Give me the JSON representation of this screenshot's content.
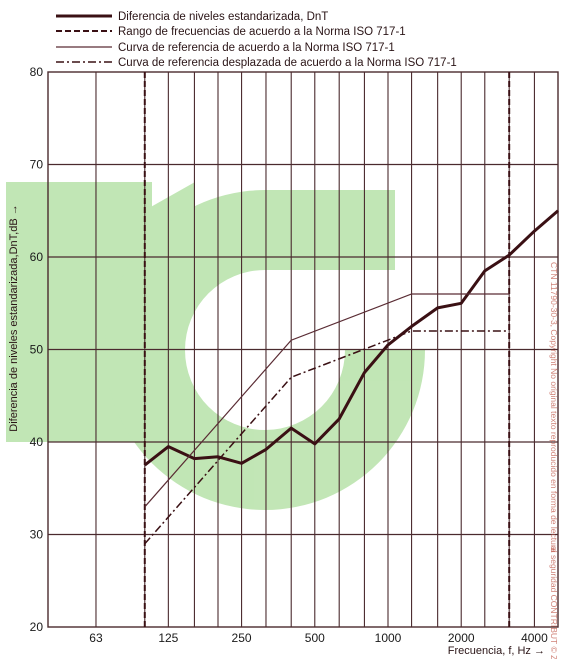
{
  "chart_data": {
    "type": "line",
    "title": "",
    "xlabel": "Frecuencia, f, Hz →",
    "ylabel": "Diferencia de niveles estandarizada,DnT,dB →",
    "x_scale": "log",
    "xlim": [
      40,
      5000
    ],
    "ylim": [
      20,
      80
    ],
    "x_tick_labels": [
      "63",
      "125",
      "250",
      "500",
      "1000",
      "2000",
      "4000"
    ],
    "x_tick_values": [
      63,
      125,
      250,
      500,
      1000,
      2000,
      4000
    ],
    "y_ticks": [
      20,
      30,
      40,
      50,
      60,
      70,
      80
    ],
    "grid": true,
    "legend_position": "top",
    "colors": {
      "dark_curve": "#3a1014",
      "reference_curve": "#5a2c34",
      "grid": "#4a2a2e",
      "watermark": "#8fd27a"
    },
    "series": [
      {
        "name": "Diferencia de niveles estandarizada, DnT",
        "style": "solid-thick",
        "x": [
          100,
          125,
          160,
          200,
          250,
          315,
          400,
          500,
          630,
          800,
          1000,
          1250,
          1600,
          2000,
          2500,
          3150,
          4000,
          5000
        ],
        "y": [
          37.5,
          39.5,
          38.2,
          38.4,
          37.7,
          39.2,
          41.5,
          39.8,
          42.5,
          47.5,
          50.5,
          52.5,
          54.5,
          55.0,
          58.5,
          60.2,
          62.8,
          65.0
        ]
      },
      {
        "name": "Rango de frecuencias de acuerdo a la Norma ISO 717-1",
        "style": "dashed",
        "x": [
          100,
          3150
        ],
        "y": [
          20,
          80
        ]
      },
      {
        "name": "Curva de referencia de acuerdo a la Norma ISO 717-1",
        "style": "solid-thin",
        "x": [
          100,
          400,
          1250,
          3150
        ],
        "y": [
          33,
          51,
          56,
          56
        ]
      },
      {
        "name": "Curva de referencia desplazada de acuerdo a la Norma ISO 717-1",
        "style": "dash-dot",
        "x": [
          100,
          400,
          1250,
          3150
        ],
        "y": [
          29,
          47,
          52,
          52
        ]
      }
    ],
    "annotations": [
      "CTN 11790-30-3, Copyright No original texto reproducido en forma de lectura",
      "al seguridad CONTRIBUT © Z-1 mis."
    ]
  }
}
